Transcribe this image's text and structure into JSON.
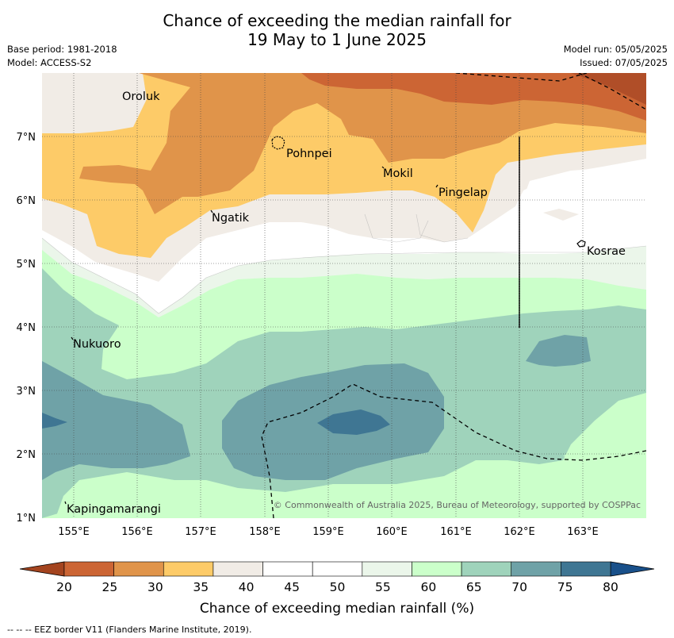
{
  "title": {
    "line1": "Chance of exceeding the median rainfall for",
    "line2": "19 May to 1 June 2025"
  },
  "meta": {
    "base_period": "Base period: 1981-2018",
    "model": "Model: ACCESS-S2",
    "model_run": "Model run: 05/05/2025",
    "issued": "Issued: 07/05/2025"
  },
  "map": {
    "lon_ticks": [
      "155°E",
      "156°E",
      "157°E",
      "158°E",
      "159°E",
      "160°E",
      "161°E",
      "162°E",
      "163°E"
    ],
    "lat_ticks": [
      "7°N",
      "6°N",
      "5°N",
      "4°N",
      "3°N",
      "2°N",
      "1°N"
    ],
    "places": [
      {
        "name": "Oroluk"
      },
      {
        "name": "Pohnpei"
      },
      {
        "name": "Mokil"
      },
      {
        "name": "Pingelap"
      },
      {
        "name": "Ngatik"
      },
      {
        "name": "Kosrae"
      },
      {
        "name": "Nukuoro"
      },
      {
        "name": "Kapingamarangi"
      }
    ],
    "copyright": "© Commonwealth of Australia 2025, Bureau of Meteorology, supported by COSPPac"
  },
  "colorbar": {
    "ticks": [
      "20",
      "25",
      "30",
      "35",
      "40",
      "45",
      "50",
      "55",
      "60",
      "65",
      "70",
      "75",
      "80"
    ],
    "colors": [
      "#b04e28",
      "#cc6534",
      "#e0944a",
      "#fdcb68",
      "#f1ece6",
      "#ffffff",
      "#ffffff",
      "#ebf6ea",
      "#cbffca",
      "#9fd3bb",
      "#6fa2a7",
      "#3f7693",
      "#19508a"
    ],
    "label": "Chance of exceeding median rainfall (%)"
  },
  "footnote": "--  --  -- EEZ border V11 (Flanders Marine Institute, 2019)."
}
